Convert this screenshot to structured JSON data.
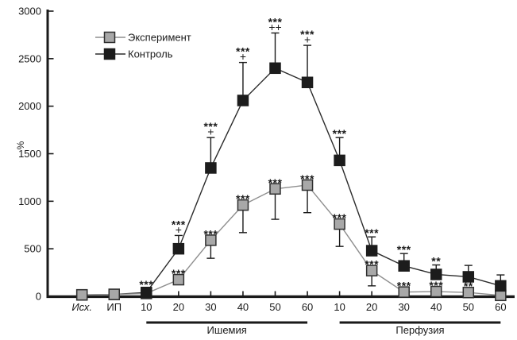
{
  "figure": {
    "background": "#ffffff",
    "ink_color": "#1a1a1a"
  },
  "chart_data": {
    "type": "line",
    "title": "",
    "xlabel": "",
    "ylabel": "%",
    "ylim": [
      0,
      3000
    ],
    "yticks": [
      0,
      500,
      1000,
      1500,
      2000,
      2500,
      3000
    ],
    "grid": false,
    "legend_position": "top-left",
    "categories": [
      "Исх.",
      "ИП",
      "10",
      "20",
      "30",
      "40",
      "50",
      "60",
      "10",
      "20",
      "30",
      "40",
      "50",
      "60"
    ],
    "italic_ticks": [
      "Исх."
    ],
    "phase_brackets": [
      {
        "label": "Ишемия",
        "from": 2,
        "to": 7
      },
      {
        "label": "Перфузия",
        "from": 8,
        "to": 13
      }
    ],
    "series": [
      {
        "name": "Эксперимент",
        "marker": "square",
        "marker_fill": "#a8a8a8",
        "marker_stroke": "#2f2f2f",
        "line_color": "#8e8e8e",
        "error_direction": "down",
        "values": [
          15,
          20,
          30,
          175,
          590,
          960,
          1130,
          1170,
          760,
          270,
          45,
          50,
          40,
          10
        ],
        "errors": [
          0,
          0,
          0,
          0,
          190,
          290,
          320,
          290,
          235,
          160,
          35,
          40,
          30,
          0
        ],
        "annotations": [
          "",
          "",
          "",
          "***",
          "***",
          "***",
          "***",
          "***",
          "***",
          "***",
          "***",
          "***",
          "**",
          ""
        ]
      },
      {
        "name": "Контроль",
        "marker": "square",
        "marker_fill": "#1c1c1c",
        "marker_stroke": "#1c1c1c",
        "line_color": "#2b2b2b",
        "error_direction": "up",
        "values": [
          15,
          20,
          40,
          500,
          1350,
          2060,
          2400,
          2250,
          1430,
          480,
          320,
          230,
          205,
          110
        ],
        "errors": [
          0,
          0,
          0,
          140,
          320,
          400,
          370,
          390,
          240,
          145,
          130,
          100,
          120,
          115
        ],
        "annotations": [
          "",
          "",
          "***",
          "***|+",
          "***|+",
          "***|+",
          "***|++",
          "***|+",
          "***",
          "***",
          "***",
          "**",
          "",
          ""
        ]
      }
    ]
  }
}
